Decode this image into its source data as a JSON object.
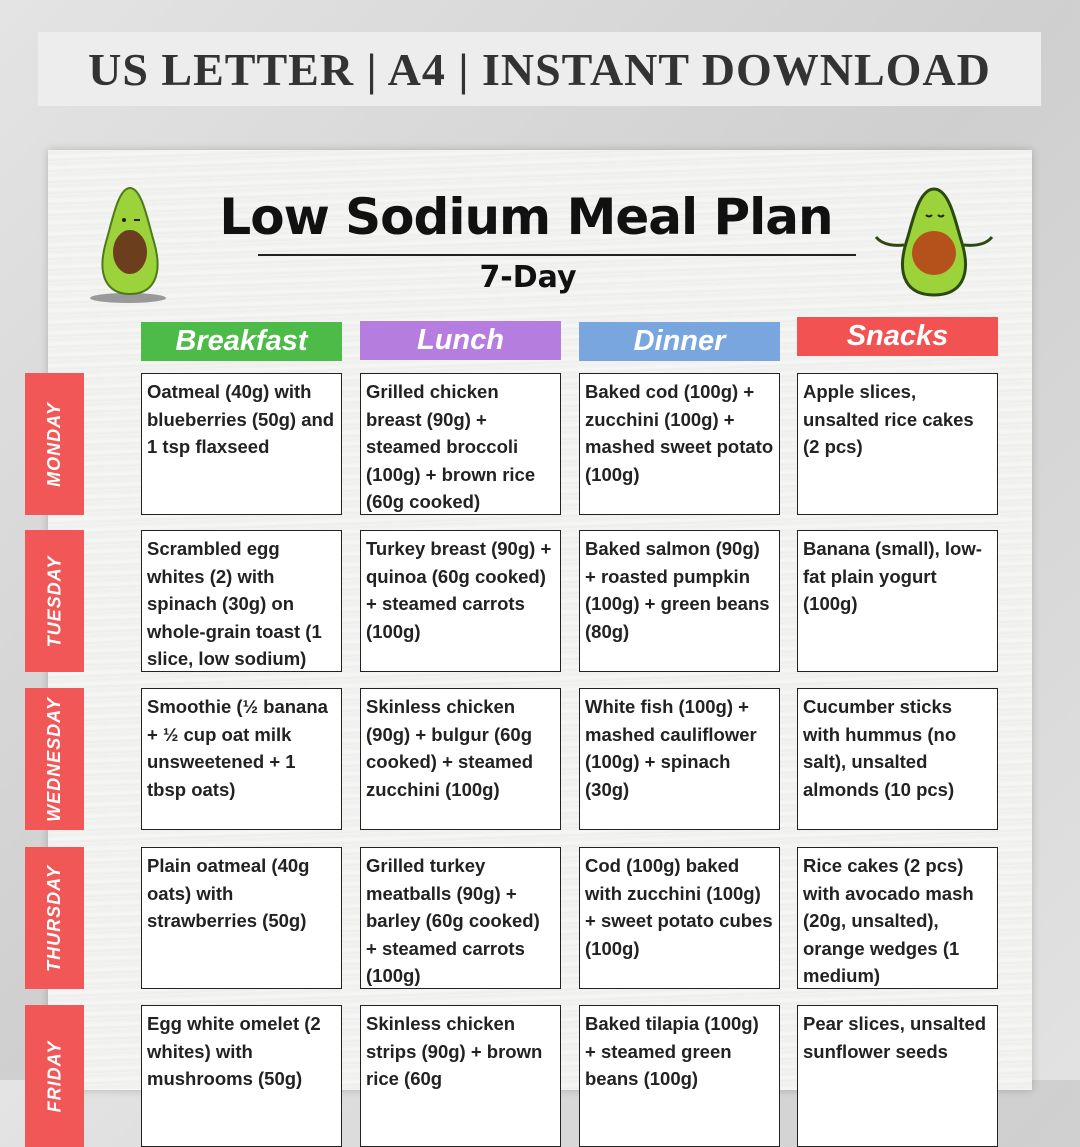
{
  "banner": "US LETTER | A4 | INSTANT DOWNLOAD",
  "title": "Low Sodium Meal Plan",
  "subtitle": "7-Day",
  "columns": [
    {
      "label": "Breakfast",
      "color": "#4cbb47"
    },
    {
      "label": "Lunch",
      "color": "#b57de0"
    },
    {
      "label": "Dinner",
      "color": "#7aa6e0"
    },
    {
      "label": "Snacks",
      "color": "#f25252"
    }
  ],
  "day_color": "#f25757",
  "rows": [
    {
      "day": "MONDAY",
      "meals": [
        "Oatmeal (40g) with blueberries (50g) and 1 tsp flaxseed",
        "Grilled chicken breast (90g) + steamed broccoli (100g) + brown rice (60g cooked)",
        "Baked cod (100g) + zucchini (100g) + mashed sweet potato (100g)",
        "Apple slices, unsalted rice cakes (2 pcs)"
      ]
    },
    {
      "day": "TUESDAY",
      "meals": [
        "Scrambled egg whites (2) with spinach (30g) on whole-grain toast (1 slice, low sodium)",
        "Turkey breast (90g) + quinoa (60g cooked) + steamed carrots (100g)",
        "Baked salmon (90g) + roasted pumpkin (100g) + green beans (80g)",
        "Banana (small), low-fat plain yogurt (100g)"
      ]
    },
    {
      "day": "WEDNESDAY",
      "meals": [
        "Smoothie (½ banana + ½ cup oat milk unsweetened + 1 tbsp oats)",
        "Skinless chicken (90g) + bulgur (60g cooked) + steamed zucchini (100g)",
        "White fish (100g) + mashed cauliflower (100g) + spinach (30g)",
        "Cucumber sticks with hummus (no salt), unsalted almonds (10 pcs)"
      ]
    },
    {
      "day": "THURSDAY",
      "meals": [
        "Plain oatmeal (40g oats) with strawberries (50g)",
        "Grilled turkey meatballs (90g) + barley (60g cooked) + steamed carrots (100g)",
        "Cod (100g) baked with zucchini (100g) + sweet potato cubes (100g)",
        "Rice cakes (2 pcs) with avocado mash (20g, unsalted), orange wedges (1 medium)"
      ]
    },
    {
      "day": "FRIDAY",
      "meals": [
        "Egg white omelet (2 whites) with mushrooms (50g)",
        "Skinless chicken strips (90g) + brown rice (60g",
        "Baked tilapia (100g) + steamed green beans (100g)",
        "Pear slices, unsalted sunflower seeds"
      ]
    }
  ]
}
